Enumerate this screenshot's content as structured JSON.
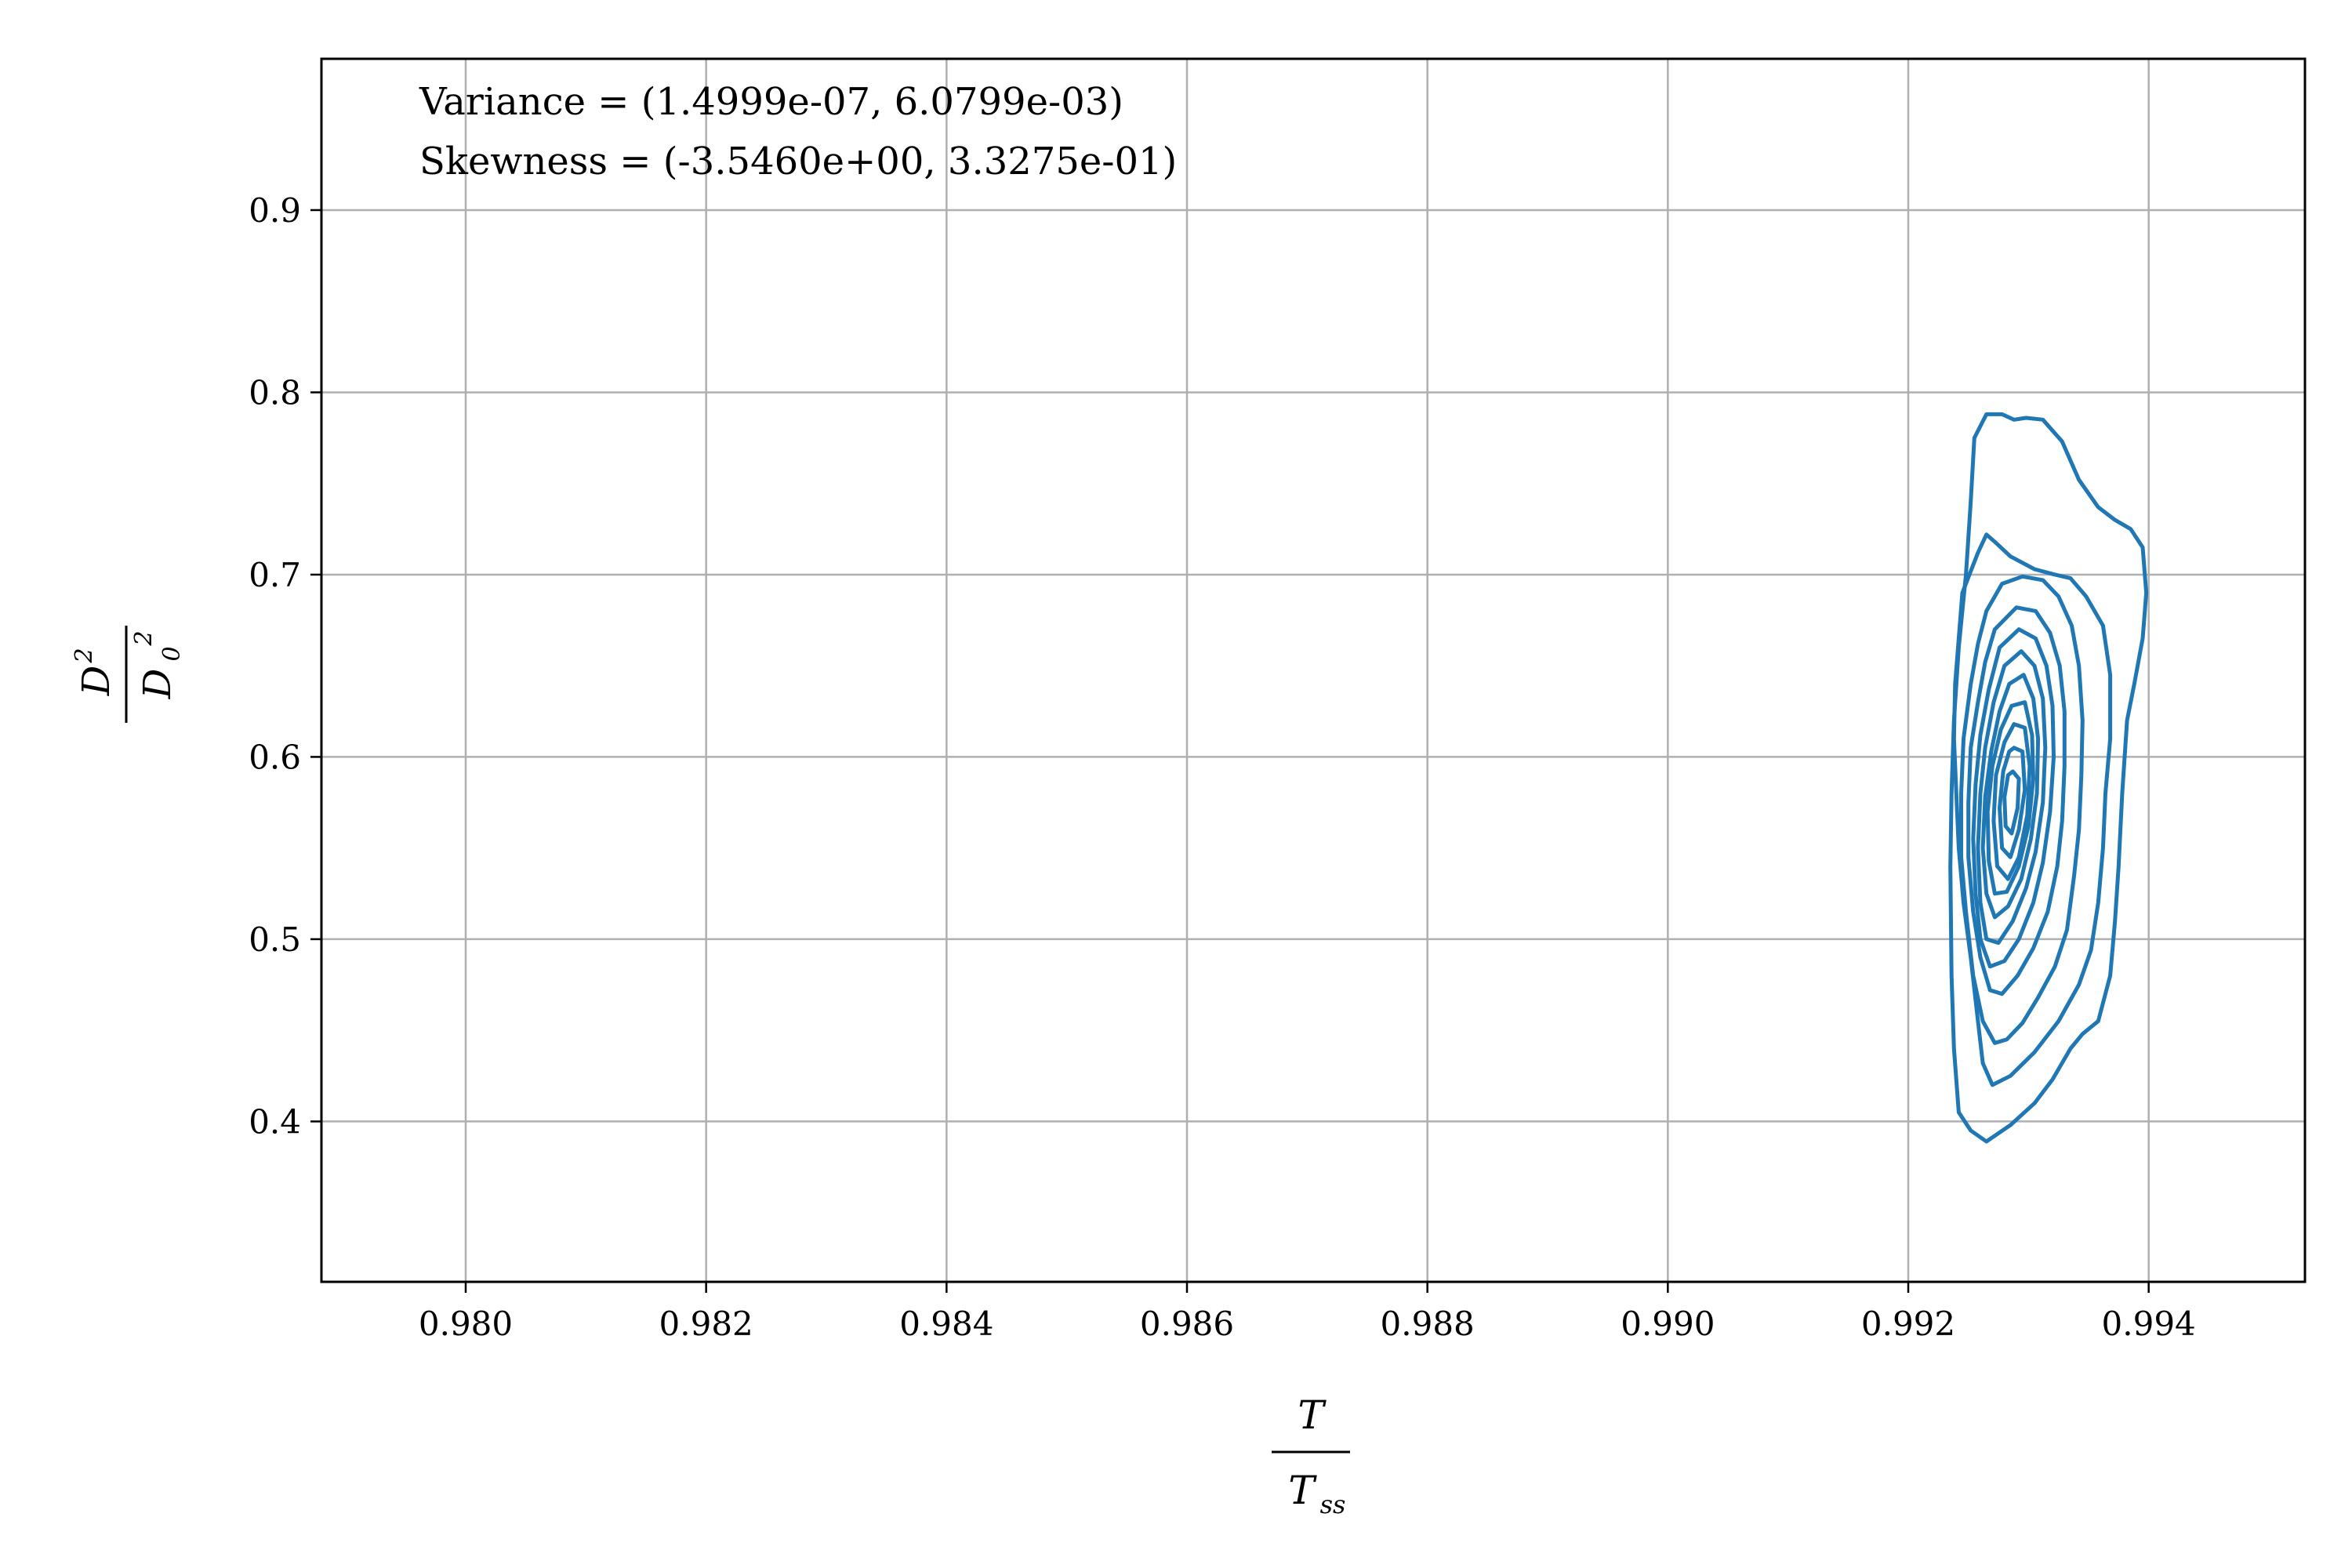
{
  "chart_data": {
    "type": "contour",
    "title": "",
    "annotations": [
      "Variance = (1.4999e-07, 6.0799e-03)",
      "Skewness = (-3.5460e+00, 3.3275e-01)"
    ],
    "xlabel": {
      "numerator": "T",
      "denominator": "T",
      "denominator_subscript": "ss"
    },
    "ylabel": {
      "numerator": "D",
      "numerator_sup": "2",
      "denominator": "D",
      "denominator_sub": "0",
      "denominator_sup": "2"
    },
    "xlim": [
      0.9788,
      0.9953
    ],
    "ylim": [
      0.312,
      0.983
    ],
    "xticks": [
      0.98,
      0.982,
      0.984,
      0.986,
      0.988,
      0.99,
      0.992,
      0.994
    ],
    "xtick_labels": [
      "0.980",
      "0.982",
      "0.984",
      "0.986",
      "0.988",
      "0.990",
      "0.992",
      "0.994"
    ],
    "yticks": [
      0.4,
      0.5,
      0.6,
      0.7,
      0.8,
      0.9
    ],
    "ytick_labels": [
      "0.4",
      "0.5",
      "0.6",
      "0.7",
      "0.8",
      "0.9"
    ],
    "grid": true,
    "line_color": "#1f77b4",
    "series": [
      {
        "x": [
          0.99255,
          0.99265,
          0.99278,
          0.99288,
          0.99298,
          0.99312,
          0.99328,
          0.99342,
          0.99358,
          0.99372,
          0.99385,
          0.99395,
          0.99398,
          0.99395,
          0.99388,
          0.99382,
          0.99378,
          0.99375,
          0.99372,
          0.99368,
          0.99358,
          0.99345,
          0.99335,
          0.9932,
          0.99305,
          0.99285,
          0.99265,
          0.99252,
          0.99242,
          0.99238,
          0.99236,
          0.99235,
          0.99236,
          0.99238,
          0.99242,
          0.99248,
          0.99252,
          0.99255
        ],
        "y": [
          0.775,
          0.788,
          0.788,
          0.785,
          0.786,
          0.785,
          0.773,
          0.752,
          0.737,
          0.73,
          0.725,
          0.715,
          0.69,
          0.665,
          0.64,
          0.62,
          0.58,
          0.54,
          0.51,
          0.48,
          0.455,
          0.448,
          0.44,
          0.423,
          0.41,
          0.398,
          0.389,
          0.395,
          0.405,
          0.44,
          0.48,
          0.54,
          0.58,
          0.62,
          0.66,
          0.7,
          0.74,
          0.775
        ]
      },
      {
        "x": [
          0.99245,
          0.99258,
          0.99265,
          0.99272,
          0.99285,
          0.99305,
          0.99322,
          0.99335,
          0.99348,
          0.99362,
          0.99368,
          0.99368,
          0.99364,
          0.99362,
          0.99358,
          0.99352,
          0.99342,
          0.99325,
          0.99305,
          0.99285,
          0.9927,
          0.99262,
          0.99258,
          0.99252,
          0.99246,
          0.99242,
          0.9924,
          0.99238,
          0.99239,
          0.99242,
          0.99245
        ],
        "y": [
          0.69,
          0.712,
          0.722,
          0.718,
          0.71,
          0.703,
          0.7,
          0.698,
          0.688,
          0.672,
          0.645,
          0.61,
          0.58,
          0.55,
          0.52,
          0.494,
          0.475,
          0.455,
          0.438,
          0.425,
          0.42,
          0.432,
          0.455,
          0.49,
          0.52,
          0.55,
          0.58,
          0.61,
          0.64,
          0.665,
          0.69
        ]
      },
      {
        "x": [
          0.99265,
          0.99278,
          0.99295,
          0.99312,
          0.99325,
          0.99336,
          0.99342,
          0.99345,
          0.99344,
          0.99342,
          0.99338,
          0.99332,
          0.99322,
          0.99308,
          0.99295,
          0.99282,
          0.99272,
          0.99262,
          0.99254,
          0.99248,
          0.99244,
          0.99244,
          0.99246,
          0.99252,
          0.99258,
          0.99265
        ],
        "y": [
          0.68,
          0.695,
          0.699,
          0.697,
          0.688,
          0.672,
          0.65,
          0.62,
          0.59,
          0.56,
          0.535,
          0.505,
          0.485,
          0.468,
          0.454,
          0.445,
          0.443,
          0.455,
          0.48,
          0.515,
          0.545,
          0.58,
          0.61,
          0.64,
          0.662,
          0.68
        ]
      },
      {
        "x": [
          0.99272,
          0.9929,
          0.99306,
          0.99318,
          0.99326,
          0.9933,
          0.9933,
          0.99328,
          0.99324,
          0.99316,
          0.99304,
          0.99291,
          0.99278,
          0.99268,
          0.9926,
          0.99254,
          0.9925,
          0.9925,
          0.99252,
          0.99258,
          0.99264,
          0.99272
        ],
        "y": [
          0.67,
          0.682,
          0.68,
          0.668,
          0.65,
          0.625,
          0.595,
          0.565,
          0.54,
          0.515,
          0.495,
          0.48,
          0.47,
          0.472,
          0.49,
          0.515,
          0.545,
          0.575,
          0.605,
          0.63,
          0.652,
          0.67
        ]
      },
      {
        "x": [
          0.99276,
          0.99292,
          0.99306,
          0.99315,
          0.9932,
          0.99321,
          0.99318,
          0.99312,
          0.99304,
          0.99292,
          0.9928,
          0.99268,
          0.9926,
          0.99256,
          0.99254,
          0.99256,
          0.9926,
          0.99267,
          0.99276
        ],
        "y": [
          0.66,
          0.67,
          0.665,
          0.65,
          0.628,
          0.6,
          0.57,
          0.542,
          0.52,
          0.5,
          0.488,
          0.485,
          0.5,
          0.525,
          0.555,
          0.585,
          0.612,
          0.637,
          0.66
        ]
      },
      {
        "x": [
          0.9928,
          0.99294,
          0.99305,
          0.99312,
          0.99314,
          0.99312,
          0.99306,
          0.99298,
          0.99287,
          0.99275,
          0.99265,
          0.9926,
          0.99258,
          0.9926,
          0.99264,
          0.99271,
          0.9928
        ],
        "y": [
          0.65,
          0.658,
          0.65,
          0.632,
          0.605,
          0.575,
          0.548,
          0.528,
          0.51,
          0.498,
          0.5,
          0.52,
          0.55,
          0.58,
          0.605,
          0.63,
          0.65
        ]
      },
      {
        "x": [
          0.99284,
          0.99296,
          0.99304,
          0.99308,
          0.99307,
          0.99302,
          0.99294,
          0.99283,
          0.99272,
          0.99265,
          0.99262,
          0.99264,
          0.99269,
          0.99276,
          0.99284
        ],
        "y": [
          0.64,
          0.645,
          0.632,
          0.61,
          0.58,
          0.555,
          0.533,
          0.518,
          0.512,
          0.525,
          0.55,
          0.578,
          0.603,
          0.625,
          0.64
        ]
      },
      {
        "x": [
          0.99286,
          0.99297,
          0.99303,
          0.99304,
          0.993,
          0.99292,
          0.99282,
          0.99272,
          0.99267,
          0.99266,
          0.9927,
          0.99277,
          0.99286
        ],
        "y": [
          0.628,
          0.63,
          0.612,
          0.588,
          0.562,
          0.54,
          0.526,
          0.525,
          0.543,
          0.57,
          0.595,
          0.615,
          0.628
        ]
      },
      {
        "x": [
          0.99288,
          0.99297,
          0.99301,
          0.99299,
          0.99292,
          0.99283,
          0.99274,
          0.99271,
          0.99273,
          0.9928,
          0.99288
        ],
        "y": [
          0.618,
          0.616,
          0.595,
          0.568,
          0.545,
          0.533,
          0.54,
          0.565,
          0.59,
          0.608,
          0.618
        ]
      },
      {
        "x": [
          0.99288,
          0.99295,
          0.99297,
          0.99292,
          0.99285,
          0.99278,
          0.99276,
          0.99279,
          0.99284,
          0.99288
        ],
        "y": [
          0.605,
          0.603,
          0.582,
          0.56,
          0.545,
          0.55,
          0.572,
          0.592,
          0.603,
          0.605
        ]
      },
      {
        "x": [
          0.99287,
          0.99292,
          0.99291,
          0.99286,
          0.99281,
          0.9928,
          0.99283,
          0.99287
        ],
        "y": [
          0.592,
          0.588,
          0.572,
          0.558,
          0.562,
          0.578,
          0.59,
          0.592
        ]
      }
    ]
  }
}
